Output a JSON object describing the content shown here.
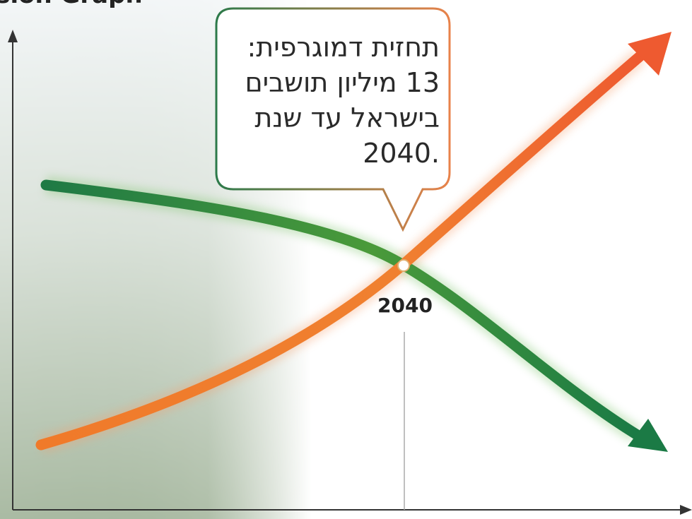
{
  "header": {
    "title": "nsion Graph"
  },
  "callout": {
    "lines": [
      "תחזית דמוגרפית:",
      "13 מיליון תושבים",
      "בישראל עד שנת",
      ".2040"
    ]
  },
  "marker": {
    "label": "2040"
  }
}
